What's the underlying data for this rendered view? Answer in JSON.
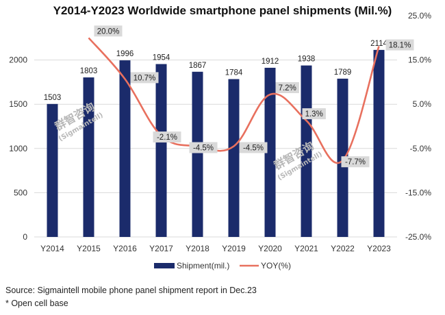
{
  "title": "Y2014-Y2023 Worldwide smartphone panel shipments (Mil.%)",
  "source": "Source: Sigmaintell mobile phone panel shipment report in Dec.23",
  "note": "* Open cell base",
  "watermark": {
    "cn": "群智咨询",
    "en": "(Sigmaintell)"
  },
  "chart_data": {
    "type": "bar",
    "categories": [
      "Y2014",
      "Y2015",
      "Y2016",
      "Y2017",
      "Y2018",
      "Y2019",
      "Y2020",
      "Y2021",
      "Y2022",
      "Y2023"
    ],
    "series": [
      {
        "name": "Shipment(mil.)",
        "type": "bar",
        "axis": "left",
        "color": "#1b2b6b",
        "values": [
          1503,
          1803,
          1996,
          1954,
          1867,
          1784,
          1912,
          1938,
          1789,
          2114
        ],
        "labels": [
          "1503",
          "1803",
          "1996",
          "1954",
          "1867",
          "1784",
          "1912",
          "1938",
          "1789",
          "2114"
        ]
      },
      {
        "name": "YOY(%)",
        "type": "line",
        "axis": "right",
        "color": "#e8705e",
        "values": [
          null,
          20.0,
          10.7,
          -2.1,
          -4.5,
          -4.5,
          7.2,
          1.3,
          -7.7,
          18.1
        ],
        "labels": [
          "",
          "20.0%",
          "10.7%",
          "-2.1%",
          "-4.5%",
          "-4.5%",
          "7.2%",
          "1.3%",
          "-7.7%",
          "18.1%"
        ]
      }
    ],
    "left_axis": {
      "ticks": [
        0,
        500,
        1000,
        1500,
        2000
      ],
      "tick_labels": [
        "0",
        "500",
        "1000",
        "1500",
        "2000"
      ],
      "range": [
        0,
        2500
      ]
    },
    "right_axis": {
      "ticks": [
        25,
        15,
        5,
        -5,
        -15,
        -25
      ],
      "tick_labels": [
        "25.0%",
        "15.0%",
        "5.0%",
        "-5.0%",
        "-15.0%",
        "-25.0%"
      ],
      "range": [
        -25,
        25
      ]
    },
    "grid": true,
    "legend_position": "bottom"
  }
}
